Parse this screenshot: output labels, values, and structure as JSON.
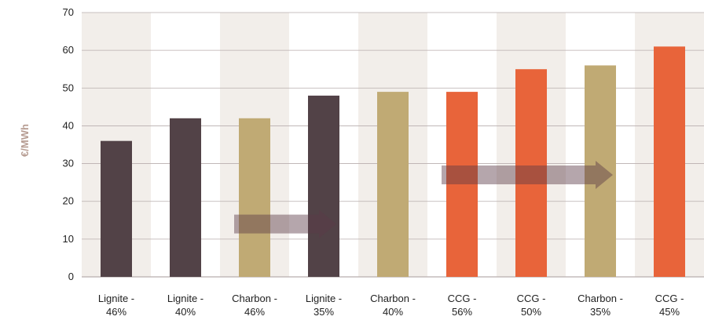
{
  "chart_data": {
    "type": "bar",
    "ylabel": "€/MWh",
    "ylim": [
      0,
      70
    ],
    "yticks": [
      "0",
      "10",
      "20",
      "30",
      "40",
      "50",
      "60",
      "70"
    ],
    "grid": true,
    "categories": [
      [
        "Lignite -",
        "46%"
      ],
      [
        "Lignite -",
        "40%"
      ],
      [
        "Charbon -",
        "46%"
      ],
      [
        "Lignite -",
        "35%"
      ],
      [
        "Charbon -",
        "40%"
      ],
      [
        "CCG -",
        "56%"
      ],
      [
        "CCG -",
        "50%"
      ],
      [
        "Charbon -",
        "35%"
      ],
      [
        "CCG -",
        "45%"
      ]
    ],
    "values": [
      36,
      42,
      42,
      48,
      49,
      49,
      55,
      56,
      61
    ],
    "bar_colors": [
      "#524247",
      "#524247",
      "#c0aa74",
      "#524247",
      "#c0aa74",
      "#e8643a",
      "#e8643a",
      "#c0aa74",
      "#e8643a"
    ],
    "arrows": [
      {
        "from_index": 2,
        "to_index": 3,
        "y": 14
      },
      {
        "from_index": 5,
        "to_index": 7,
        "y": 27
      }
    ],
    "colors": {
      "lignite": "#524247",
      "charbon": "#c0aa74",
      "ccg": "#e8643a",
      "band": "#f2eeea",
      "grid": "#b8aeae",
      "arrow": "#5a3a48"
    }
  }
}
